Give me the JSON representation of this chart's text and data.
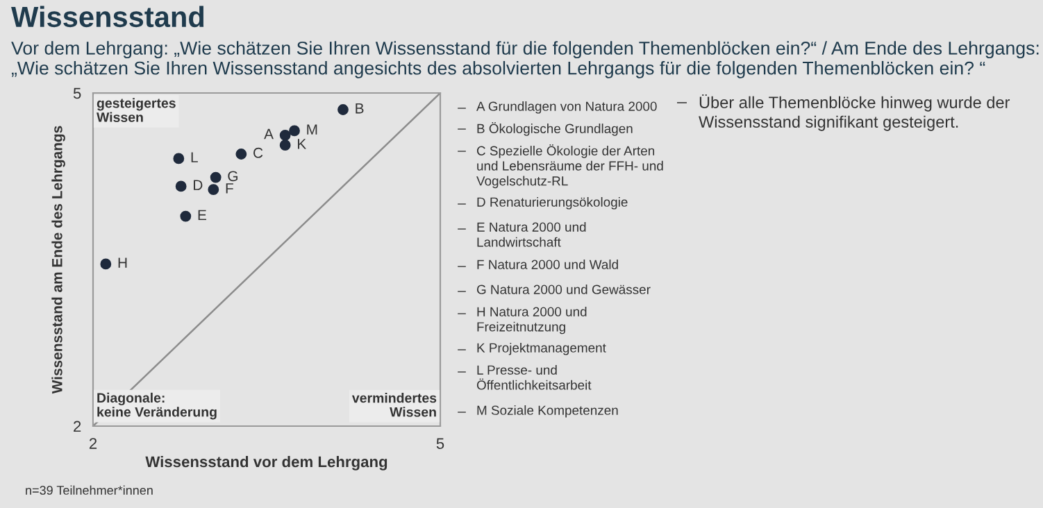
{
  "chart_data": {
    "type": "scatter",
    "title": "Wissensstand",
    "subtitle": "Vor dem Lehrgang: „Wie schätzen Sie Ihren Wissensstand für die folgenden Themenblöcken ein?“ / Am Ende des Lehrgangs:\n„Wie schätzen Sie Ihren Wissensstand angesichts des absolvierten Lehrgangs für die folgenden Themenblöcken ein? “",
    "xlabel": "Wissensstand vor dem Lehrgang",
    "ylabel": "Wissensstand am Ende des Lehrgangs",
    "xlim": [
      2,
      5
    ],
    "ylim": [
      2,
      5
    ],
    "xticks": [
      2,
      5
    ],
    "yticks": [
      2,
      5
    ],
    "grid": false,
    "legend": false,
    "series": [
      {
        "marker": "circle",
        "color": "#1f2a3c",
        "x": [
          3.66,
          4.16,
          3.28,
          2.76,
          2.8,
          3.04,
          3.06,
          2.11,
          3.66,
          2.74,
          3.74
        ],
        "values": [
          4.62,
          4.85,
          4.45,
          4.16,
          3.89,
          4.13,
          4.24,
          3.46,
          4.53,
          4.41,
          4.66
        ]
      },
      {
        "type": "line",
        "color": "#8c8c8c",
        "x": [
          2,
          5
        ],
        "values": [
          2,
          5
        ]
      }
    ],
    "annotations": [
      {
        "text": "A",
        "x": 3.66,
        "y": 4.62
      },
      {
        "text": "B",
        "x": 4.16,
        "y": 4.85
      },
      {
        "text": "C",
        "x": 3.28,
        "y": 4.45
      },
      {
        "text": "D",
        "x": 2.76,
        "y": 4.16
      },
      {
        "text": "E",
        "x": 2.8,
        "y": 3.89
      },
      {
        "text": "F",
        "x": 3.04,
        "y": 4.13
      },
      {
        "text": "G",
        "x": 3.06,
        "y": 4.24
      },
      {
        "text": "H",
        "x": 2.11,
        "y": 3.46
      },
      {
        "text": "K",
        "x": 3.66,
        "y": 4.53
      },
      {
        "text": "L",
        "x": 2.74,
        "y": 4.41
      },
      {
        "text": "M",
        "x": 3.74,
        "y": 4.66
      },
      "gesteigertes\nWissen",
      "vermindertes\nWissen",
      "Diagonale:\nkeine Veränderung",
      "A Grundlagen von Natura 2000",
      "B Ökologische Grundlagen",
      "C Spezielle Ökologie der Arten\nund Lebensräume der FFH- und\nVogelschutz-RL",
      "D Renaturierungsökologie",
      "E Natura 2000 und\nLandwirtschaft",
      "F Natura 2000 und Wald",
      "G Natura 2000 und Gewässer",
      "H Natura 2000 und\nFreizeitnutzung",
      "K Projektmanagement",
      "L Presse- und\nÖffentlichkeitsarbeit",
      "M Soziale Kompetenzen",
      "Über alle Themenblöcke hinweg wurde der\nWissensstand signifikant gesteigert.",
      "n=39 Teilnehmer*innen"
    ]
  }
}
